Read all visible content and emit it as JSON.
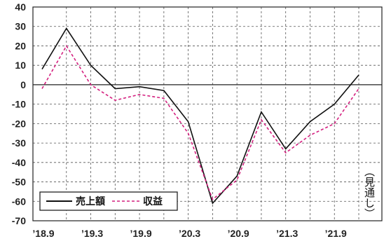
{
  "chart_data": {
    "type": "line",
    "x": [
      "18.9",
      "18.12",
      "19.3",
      "19.6",
      "19.9",
      "19.12",
      "20.3",
      "20.6",
      "20.9",
      "20.12",
      "21.3",
      "21.6",
      "21.9",
      "21.12"
    ],
    "x_tick_labels": [
      "’18.9",
      "’19.3",
      "’19.9",
      "’20.3",
      "’20.9",
      "’21.3",
      "’21.9"
    ],
    "series": [
      {
        "name": "売上額",
        "values": [
          8,
          29,
          10,
          -2,
          -1,
          -3,
          -19,
          -61,
          -47,
          -14,
          -33,
          -19,
          -10,
          5
        ]
      },
      {
        "name": "収益",
        "values": [
          -2,
          20,
          0,
          -8,
          -5,
          -7,
          -25,
          -59,
          -49,
          -18,
          -35,
          -26,
          -20,
          -2
        ]
      }
    ],
    "ylim": [
      -70,
      40
    ],
    "yticks": [
      40,
      30,
      20,
      10,
      0,
      -10,
      -20,
      -30,
      -40,
      -50,
      -60,
      -70
    ],
    "annotation": "（見通し）",
    "grid": true,
    "legend_position": "bottom-left"
  },
  "colors": {
    "series_1": "#111111",
    "series_2": "#d4207f",
    "grid": "#555555",
    "axis": "#222222"
  }
}
